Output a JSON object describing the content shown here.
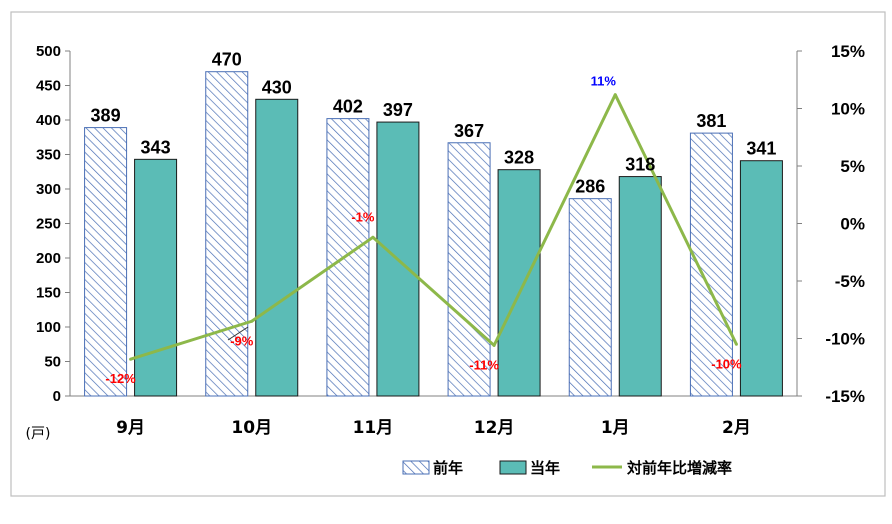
{
  "chart_data": {
    "type": "bar",
    "categories": [
      "9月",
      "10月",
      "11月",
      "12月",
      "1月",
      "2月"
    ],
    "left_axis": {
      "unit_label": "(戸)",
      "range": [
        0,
        500
      ],
      "ticks": [
        "0",
        "50",
        "100",
        "150",
        "200",
        "250",
        "300",
        "350",
        "400",
        "450",
        "500"
      ]
    },
    "right_axis": {
      "range": [
        -15,
        15
      ],
      "ticks": [
        "-15%",
        "-10%",
        "-5%",
        "0%",
        "5%",
        "10%",
        "15%"
      ]
    },
    "series": [
      {
        "name": "前年",
        "type": "bar",
        "axis": "left",
        "values": [
          389,
          470,
          402,
          367,
          286,
          381
        ],
        "labels": [
          "389",
          "470",
          "402",
          "367",
          "286",
          "381"
        ],
        "color": "#4a6fb5",
        "pattern": "diagonal-hatch"
      },
      {
        "name": "当年",
        "type": "bar",
        "axis": "left",
        "values": [
          343,
          430,
          397,
          328,
          318,
          341
        ],
        "labels": [
          "343",
          "430",
          "397",
          "328",
          "318",
          "341"
        ],
        "color": "#5bbcb6"
      },
      {
        "name": "対前年比増減率",
        "type": "line",
        "axis": "right",
        "values": [
          -11.8,
          -8.5,
          -1.2,
          -10.6,
          11.2,
          -10.5
        ],
        "labels": [
          "-12%",
          "-9%",
          "-1%",
          "-11%",
          "11%",
          "-10%"
        ],
        "color": "#8db84a",
        "label_colors": [
          "#ff0000",
          "#ff0000",
          "#ff0000",
          "#ff0000",
          "#0000ff",
          "#ff0000"
        ]
      }
    ],
    "legend": {
      "placement": "bottom-right",
      "entries": [
        "前年",
        "当年",
        "対前年比増減率"
      ]
    },
    "grid": false
  }
}
